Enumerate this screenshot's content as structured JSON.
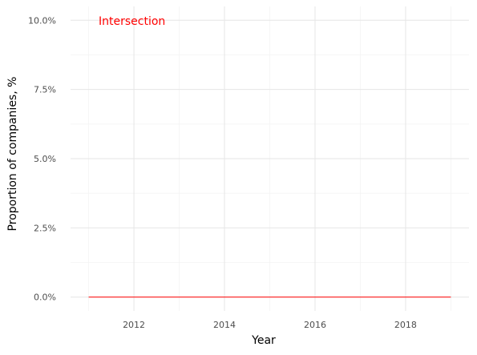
{
  "chart_data": {
    "type": "line",
    "title": "",
    "xlabel": "Year",
    "ylabel": "Proportion of companies, %",
    "xlim": [
      2010.6,
      2019.4
    ],
    "ylim": [
      -0.5,
      10.5
    ],
    "x_ticks": [
      2012,
      2014,
      2016,
      2018
    ],
    "x_tick_labels": [
      "2012",
      "2014",
      "2016",
      "2018"
    ],
    "y_ticks": [
      0,
      2.5,
      5,
      7.5,
      10
    ],
    "y_tick_labels": [
      "0.0%",
      "2.5%",
      "5.0%",
      "7.5%",
      "10.0%"
    ],
    "grid": true,
    "series": [
      {
        "color": "#ff0000",
        "x": [
          2011,
          2019
        ],
        "values": [
          0,
          0
        ]
      }
    ],
    "annotations": [
      {
        "text": "Intersection",
        "color": "#ff0000"
      }
    ]
  }
}
